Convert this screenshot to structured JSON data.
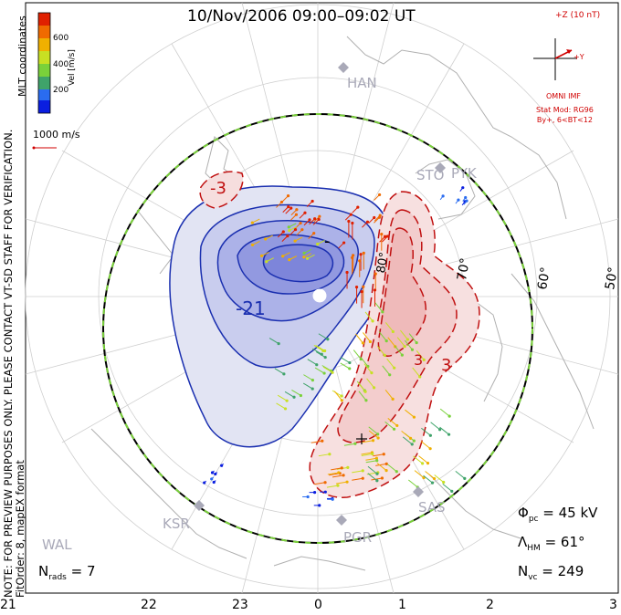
{
  "title": "10/Nov/2006 09:00–09:02 UT",
  "imf": {
    "scale_label": "+Z (10 nT)",
    "y_label": "+Y",
    "source": "OMNI IMF",
    "stat_mod": "Stat Mod: RG96",
    "condition": "By+, 6<BT<12"
  },
  "velocity_scale": {
    "label": "1000 m/s",
    "colorbar_title": "Vel [m/s]",
    "colorbar_ticks": [
      "600",
      "400",
      "200"
    ],
    "colors": [
      "#0a1ee0",
      "#2a6cf0",
      "#3fa36a",
      "#7ad13a",
      "#c8e023",
      "#f0b000",
      "#f06a00",
      "#e02000"
    ]
  },
  "axis_label": "MLT coordinates",
  "latitude_labels": [
    "80°",
    "70°",
    "60°",
    "50°"
  ],
  "mlt_ticks": [
    "21",
    "22",
    "23",
    "0",
    "1",
    "2",
    "3"
  ],
  "stations": [
    "HAN",
    "STO",
    "PYK",
    "KSR",
    "PGR",
    "SAS",
    "WAL"
  ],
  "contour_labels": [
    "-21",
    "-3",
    "-",
    "3",
    "3"
  ],
  "stats": {
    "phi_pc": "Φ",
    "phi_pc_sub": "pc",
    "phi_pc_value": "= 45 kV",
    "lambda_hm": "Λ",
    "lambda_hm_sub": "HM",
    "lambda_hm_value": "= 61°",
    "n_vc": "N",
    "n_vc_sub": "vc",
    "n_vc_value": "= 249",
    "n_rads": "N",
    "n_rads_sub": "rads",
    "n_rads_value": "= 7"
  },
  "notes": {
    "preview": "NOTE: FOR PREVIEW PURPOSES ONLY. PLEASE CONTACT VT-SD STAFF FOR VERIFICATION.",
    "fitorder": "FitOrder: 8, mapEX format"
  },
  "colors": {
    "negative_cell": "#1a2fb0",
    "positive_cell": "#c01010",
    "station": "#a9a9b8",
    "imf": "#d00000"
  }
}
